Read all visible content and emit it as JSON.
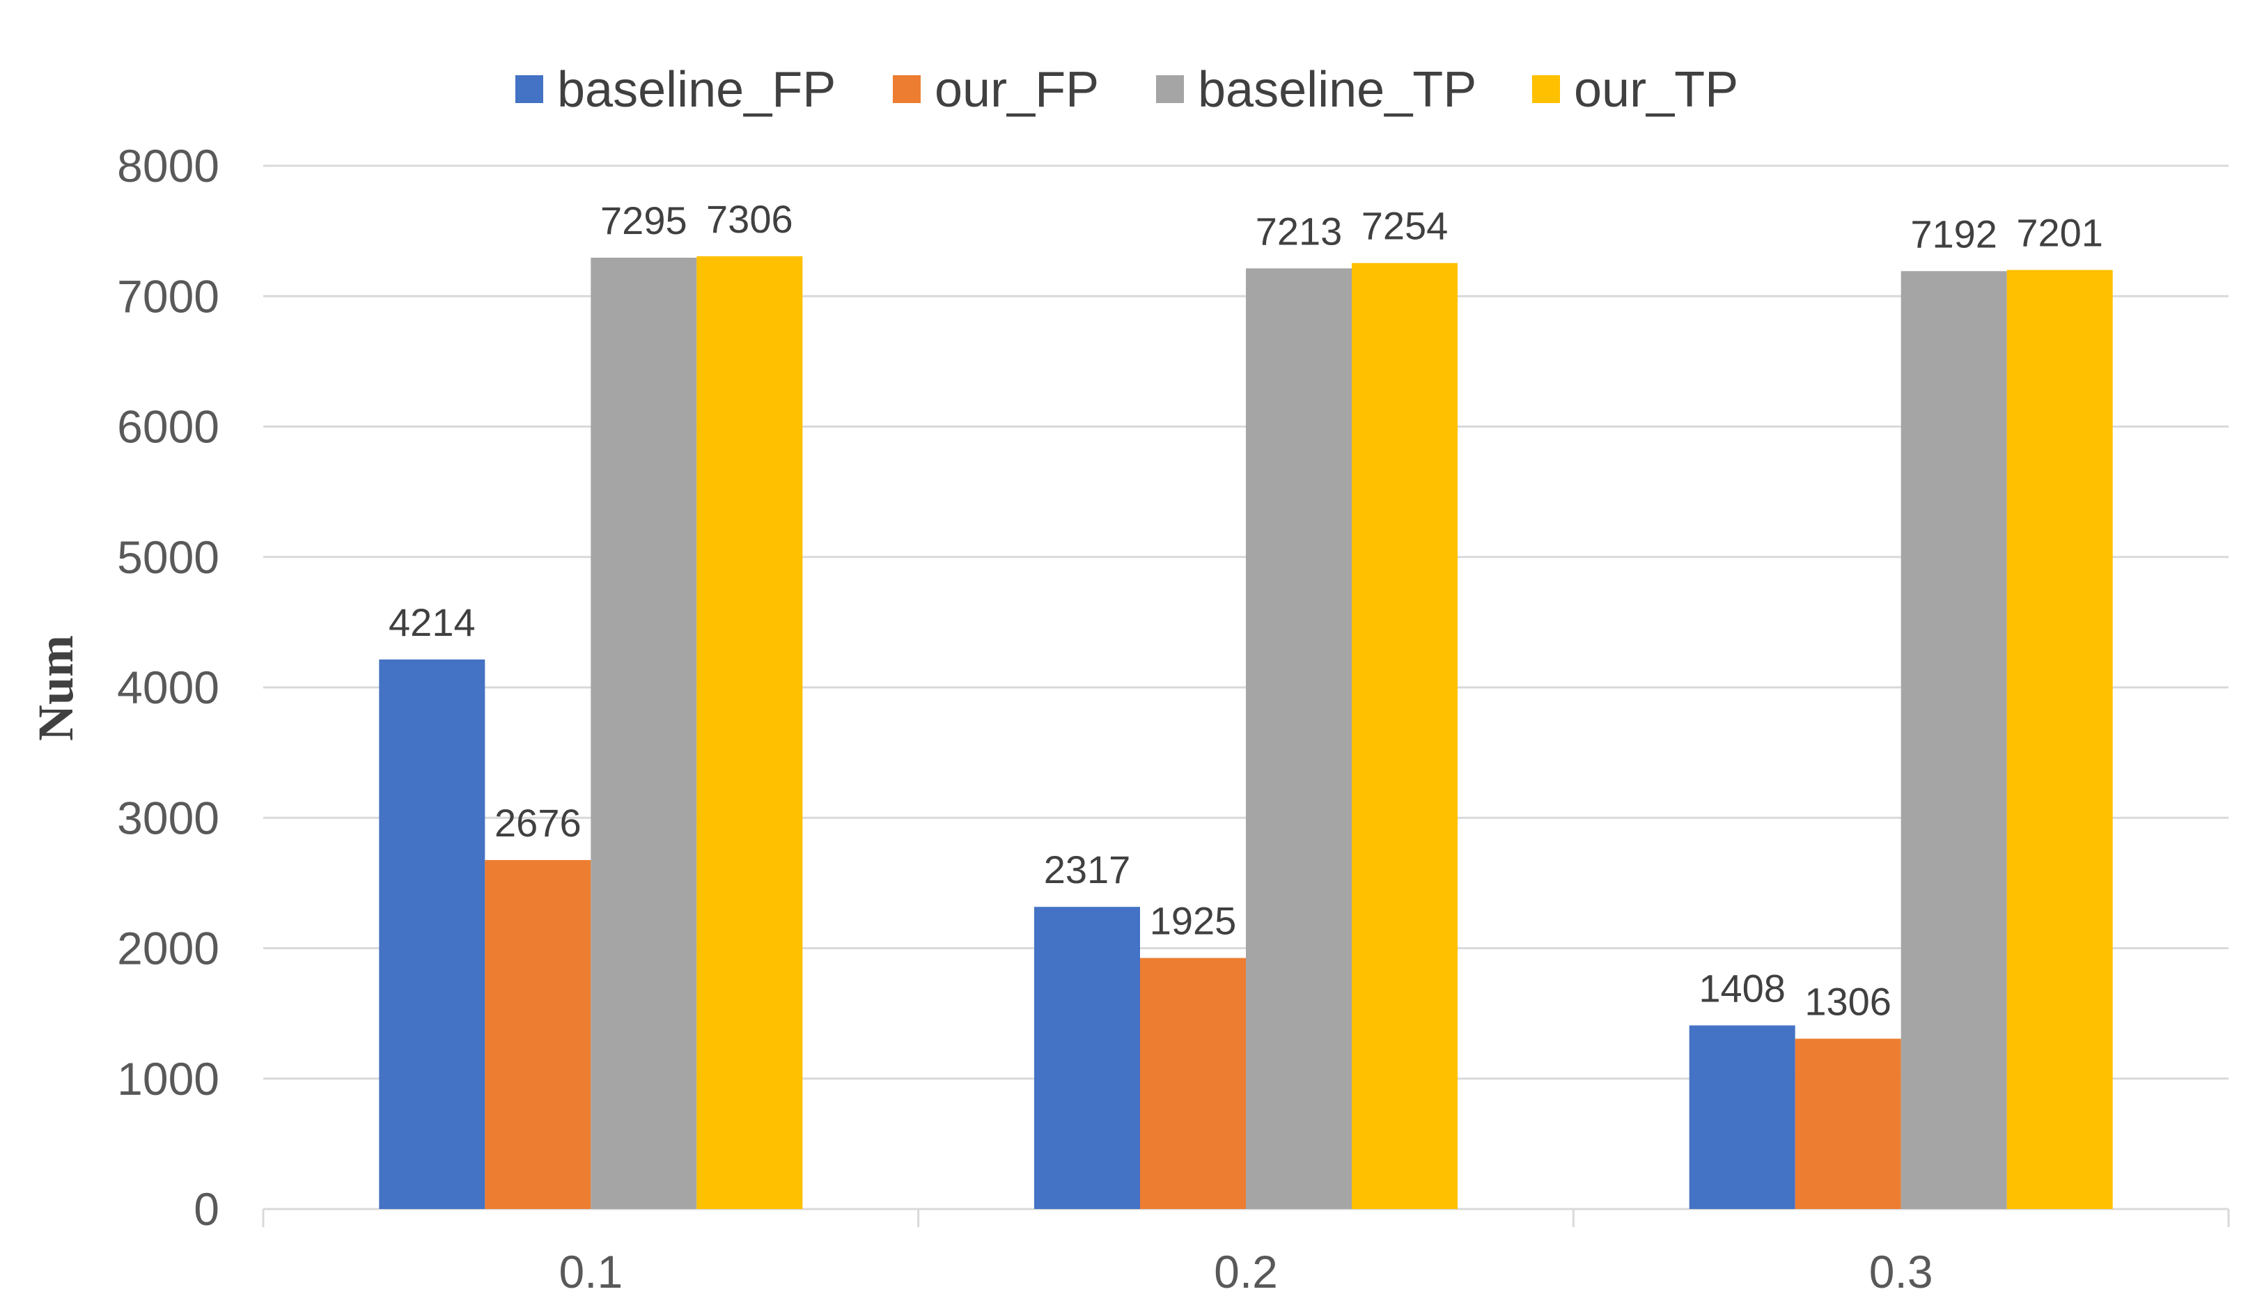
{
  "chart_data": {
    "type": "bar",
    "categories": [
      "0.1",
      "0.2",
      "0.3"
    ],
    "series": [
      {
        "name": "baseline_FP",
        "values": [
          4214,
          2317,
          1408
        ],
        "color": "#4472C4"
      },
      {
        "name": "our_FP",
        "values": [
          2676,
          1925,
          1306
        ],
        "color": "#ED7D31"
      },
      {
        "name": "baseline_TP",
        "values": [
          7295,
          7213,
          7192
        ],
        "color": "#A5A5A5"
      },
      {
        "name": "our_TP",
        "values": [
          7306,
          7254,
          7201
        ],
        "color": "#FFC000"
      }
    ],
    "title": "",
    "xlabel": "",
    "ylabel": "Num",
    "ylim": [
      0,
      8000
    ],
    "yticks": [
      "0",
      "1000",
      "2000",
      "3000",
      "4000",
      "5000",
      "6000",
      "7000",
      "8000"
    ],
    "grid": true,
    "legend_position": "top",
    "data_labels": true
  }
}
